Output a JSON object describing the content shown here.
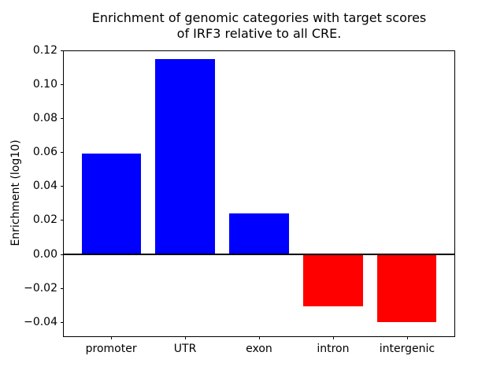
{
  "figure": {
    "background_color": "#ffffff",
    "text_color": "#000000"
  },
  "chart_data": {
    "type": "bar",
    "title": "Enrichment of genomic categories with target scores\nof IRF3 relative to all CRE.",
    "ylabel": "Enrichment (log10)",
    "xlabel": "",
    "categories": [
      "promoter",
      "UTR",
      "exon",
      "intron",
      "intergenic"
    ],
    "values": [
      0.059,
      0.115,
      0.024,
      -0.031,
      -0.04
    ],
    "bar_colors": [
      "#0000ff",
      "#0000ff",
      "#0000ff",
      "#ff0000",
      "#ff0000"
    ],
    "ylim": [
      -0.048,
      0.12
    ],
    "yticks": [
      {
        "v": 0.12,
        "label": "0.12"
      },
      {
        "v": 0.1,
        "label": "0.10"
      },
      {
        "v": 0.08,
        "label": "0.08"
      },
      {
        "v": 0.06,
        "label": "0.06"
      },
      {
        "v": 0.04,
        "label": "0.04"
      },
      {
        "v": 0.02,
        "label": "0.02"
      },
      {
        "v": 0.0,
        "label": "0.00"
      },
      {
        "v": -0.02,
        "label": "−0.02"
      },
      {
        "v": -0.04,
        "label": "−0.04"
      }
    ],
    "zero_line": true,
    "grid": false
  }
}
